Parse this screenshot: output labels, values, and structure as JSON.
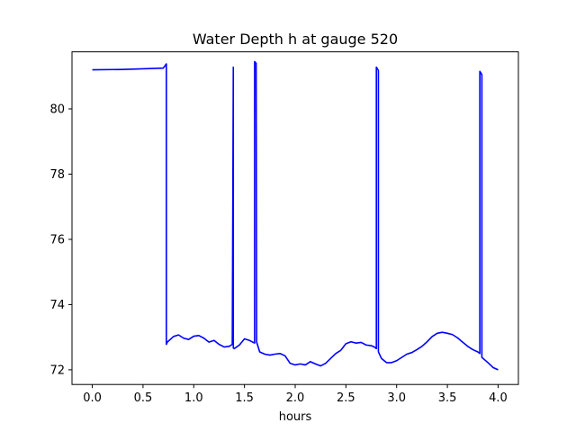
{
  "chart_data": {
    "type": "line",
    "title": "Water Depth h at gauge 520",
    "xlabel": "hours",
    "ylabel": "",
    "xlim": [
      -0.2,
      4.2
    ],
    "ylim": [
      71.55,
      81.75
    ],
    "xticks": [
      0.0,
      0.5,
      1.0,
      1.5,
      2.0,
      2.5,
      3.0,
      3.5,
      4.0
    ],
    "xtick_labels": [
      "0.0",
      "0.5",
      "1.0",
      "1.5",
      "2.0",
      "2.5",
      "3.0",
      "3.5",
      "4.0"
    ],
    "yticks": [
      72,
      74,
      76,
      78,
      80
    ],
    "ytick_labels": [
      "72",
      "74",
      "76",
      "78",
      "80"
    ],
    "grid": false,
    "legend": "none",
    "series": [
      {
        "color": "#0000ff",
        "x": [
          0.0,
          0.3,
          0.7,
          0.73,
          0.73,
          0.74,
          0.8,
          0.85,
          0.9,
          0.95,
          1.0,
          1.05,
          1.1,
          1.15,
          1.2,
          1.25,
          1.3,
          1.35,
          1.38,
          1.39,
          1.39,
          1.4,
          1.45,
          1.5,
          1.55,
          1.6,
          1.6,
          1.615,
          1.62,
          1.65,
          1.7,
          1.75,
          1.8,
          1.85,
          1.9,
          1.95,
          2.0,
          2.05,
          2.1,
          2.15,
          2.2,
          2.25,
          2.3,
          2.35,
          2.4,
          2.45,
          2.5,
          2.55,
          2.6,
          2.65,
          2.7,
          2.75,
          2.78,
          2.8,
          2.8,
          2.82,
          2.82,
          2.85,
          2.9,
          2.95,
          3.0,
          3.05,
          3.1,
          3.15,
          3.2,
          3.25,
          3.3,
          3.35,
          3.4,
          3.45,
          3.5,
          3.55,
          3.6,
          3.65,
          3.7,
          3.75,
          3.8,
          3.82,
          3.82,
          3.84,
          3.84,
          3.9,
          3.95,
          4.0
        ],
        "y": [
          81.2,
          81.21,
          81.25,
          81.38,
          72.78,
          72.85,
          73.02,
          73.07,
          72.97,
          72.93,
          73.03,
          73.05,
          72.97,
          72.85,
          72.9,
          72.78,
          72.7,
          72.72,
          72.78,
          81.28,
          72.67,
          72.65,
          72.76,
          72.95,
          72.9,
          72.82,
          81.45,
          81.4,
          72.85,
          72.55,
          72.48,
          72.45,
          72.48,
          72.5,
          72.43,
          72.2,
          72.15,
          72.18,
          72.15,
          72.25,
          72.18,
          72.12,
          72.2,
          72.35,
          72.5,
          72.6,
          72.8,
          72.86,
          72.82,
          72.84,
          72.76,
          72.74,
          72.7,
          72.65,
          81.28,
          81.18,
          72.55,
          72.35,
          72.22,
          72.22,
          72.28,
          72.38,
          72.48,
          72.53,
          72.62,
          72.72,
          72.86,
          73.02,
          73.12,
          73.15,
          73.12,
          73.08,
          72.98,
          72.85,
          72.72,
          72.62,
          72.55,
          72.5,
          81.15,
          81.05,
          72.38,
          72.22,
          72.07,
          72.0
        ]
      }
    ]
  }
}
